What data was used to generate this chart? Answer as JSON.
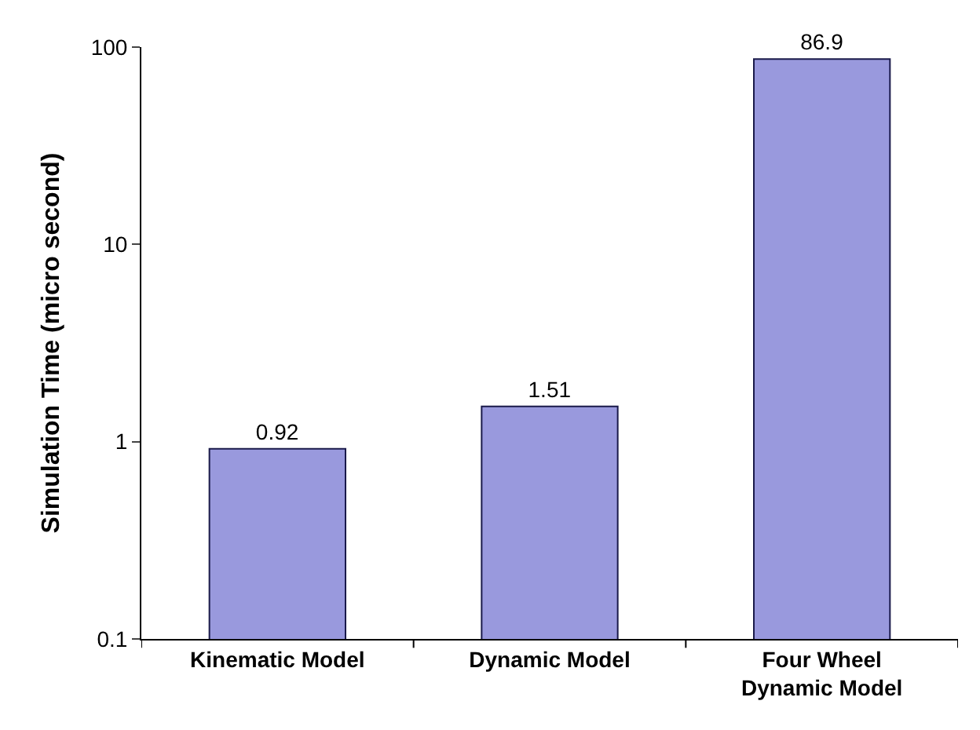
{
  "chart_data": {
    "type": "bar",
    "ylabel": "Simulation Time (micro second)",
    "categories": [
      "Kinematic Model",
      "Dynamic Model",
      "Four Wheel\nDynamic Model"
    ],
    "values": [
      0.92,
      1.51,
      86.9
    ],
    "color": "#9999dd",
    "log": true,
    "ylim": [
      0.1,
      100
    ],
    "yticks": [
      0.1,
      1,
      10,
      100
    ],
    "data_labels": true
  }
}
